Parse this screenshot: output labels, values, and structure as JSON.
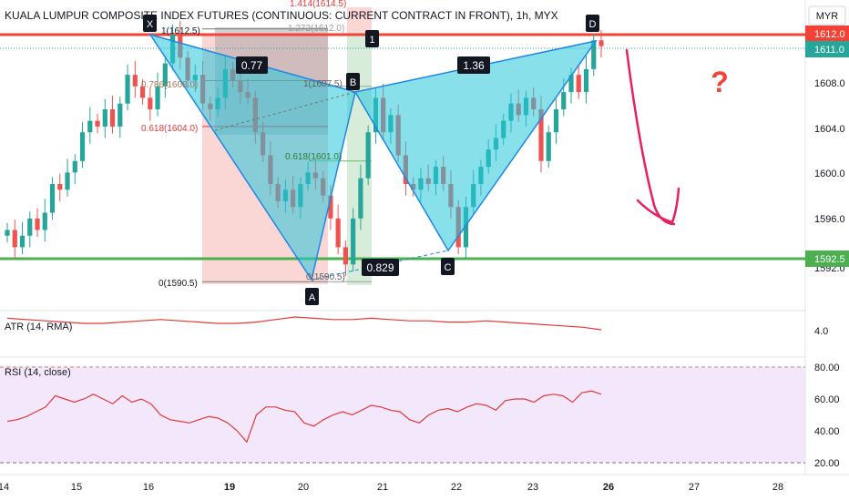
{
  "header": {
    "title": "KUALA LUMPUR COMPOSITE INDEX FUTURES (CONTINUOUS: CURRENT CONTRACT IN FRONT), 1h, MYX",
    "currency": "MYR"
  },
  "colors": {
    "up": "#26a69a",
    "down": "#ef5350",
    "pattern_fill": "#26c6da",
    "pattern_stroke": "#1e88e5",
    "resistance": "#f44336",
    "support": "#4caf50",
    "atr_line": "#e53935",
    "rsi_line": "#e53935",
    "rsi_band": "#efe0f8",
    "annotation": "#e91e63",
    "question": "#f44336"
  },
  "price_axis": {
    "ticks": [
      "1608.0",
      "1604.0",
      "1600.0",
      "1596.0"
    ],
    "last_price": "1611.0",
    "resistance_label": "1612.0",
    "support_label": "1592.5",
    "partial_label": "1592.0"
  },
  "time_axis": {
    "labels": [
      "14",
      "15",
      "16",
      "19",
      "20",
      "21",
      "22",
      "23",
      "26",
      "27",
      "28"
    ],
    "bold_labels": [
      "19",
      "26"
    ]
  },
  "harmonic": {
    "points": {
      "X": "X",
      "A": "A",
      "B": "B",
      "C": "C",
      "D": "D"
    },
    "ratios": {
      "xab": "0.77",
      "abc": "0.829",
      "bcd": "1.36"
    },
    "fib_labels": {
      "top": "1(1612.5)",
      "f786": "0.786(1608.0)",
      "f618": "0.618(1604.0)",
      "bottom": "0(1590.5)",
      "ab_top": "1(1607.5)",
      "ab_618": "0.618(1601.0)",
      "ab_bottom": "0(1590.5)",
      "ext_1414": "1.414(1614.5)",
      "ext_1272": "1.272(1612.0)"
    },
    "marker": "1"
  },
  "annotation": {
    "question": "?"
  },
  "atr": {
    "label": "ATR (14, RMA)",
    "tick": "4.0"
  },
  "rsi": {
    "label": "RSI (14, close)",
    "ticks": [
      "80.00",
      "60.00",
      "40.00",
      "20.00"
    ]
  },
  "chart_data": {
    "type": "candlestick",
    "title": "KUALA LUMPUR COMPOSITE INDEX FUTURES (CONTINUOUS: CURRENT CONTRACT IN FRONT), 1h, MYX",
    "ylim": [
      1588.5,
      1614.5
    ],
    "resistance": 1612.0,
    "support": 1592.5,
    "last_price": 1611.0,
    "close": [
      1595.0,
      1593.5,
      1594.5,
      1596.0,
      1595.0,
      1596.5,
      1599.0,
      1598.5,
      1600.0,
      1601.0,
      1603.5,
      1604.5,
      1604.0,
      1605.5,
      1604.0,
      1606.0,
      1608.5,
      1607.5,
      1606.5,
      1605.5,
      1607.5,
      1609.5,
      1612.0,
      1610.0,
      1608.0,
      1608.5,
      1606.0,
      1605.5,
      1606.5,
      1609.0,
      1608.0,
      1607.0,
      1606.5,
      1603.5,
      1601.5,
      1599.0,
      1597.5,
      1598.5,
      1597.0,
      1599.0,
      1600.0,
      1599.5,
      1598.0,
      1596.0,
      1593.5,
      1592.0,
      1596.0,
      1599.5,
      1603.5,
      1606.5,
      1603.5,
      1605.0,
      1601.5,
      1599.0,
      1598.5,
      1599.5,
      1599.0,
      1600.5,
      1599.0,
      1597.0,
      1593.5,
      1597.0,
      1599.0,
      1600.5,
      1602.0,
      1603.0,
      1604.5,
      1606.0,
      1605.0,
      1606.5,
      1605.5,
      1601.0,
      1603.5,
      1605.5,
      1607.0,
      1608.5,
      1607.0,
      1609.0,
      1611.5,
      1611.0
    ],
    "atr_values": [
      4.9,
      4.8,
      4.7,
      4.6,
      4.5,
      4.5,
      4.6,
      4.7,
      4.8,
      4.7,
      4.6,
      4.5,
      4.5,
      4.6,
      4.8,
      5.0,
      4.9,
      4.8,
      4.8,
      4.9,
      4.8,
      4.7,
      4.7,
      4.6,
      4.6,
      4.7,
      4.6,
      4.5,
      4.4,
      4.3,
      4.2,
      4.0
    ],
    "rsi_values": [
      46,
      47,
      49,
      52,
      55,
      62,
      60,
      58,
      60,
      63,
      60,
      57,
      62,
      58,
      60,
      57,
      50,
      47,
      46,
      45,
      47,
      49,
      48,
      45,
      40,
      33,
      50,
      55,
      55,
      53,
      52,
      45,
      43,
      47,
      50,
      52,
      50,
      53,
      56,
      55,
      53,
      52,
      47,
      45,
      50,
      53,
      54,
      52,
      55,
      57,
      56,
      53,
      59,
      60,
      60,
      58,
      62,
      63,
      62,
      58,
      64,
      65,
      63
    ],
    "rsi_levels": [
      80,
      20
    ]
  }
}
